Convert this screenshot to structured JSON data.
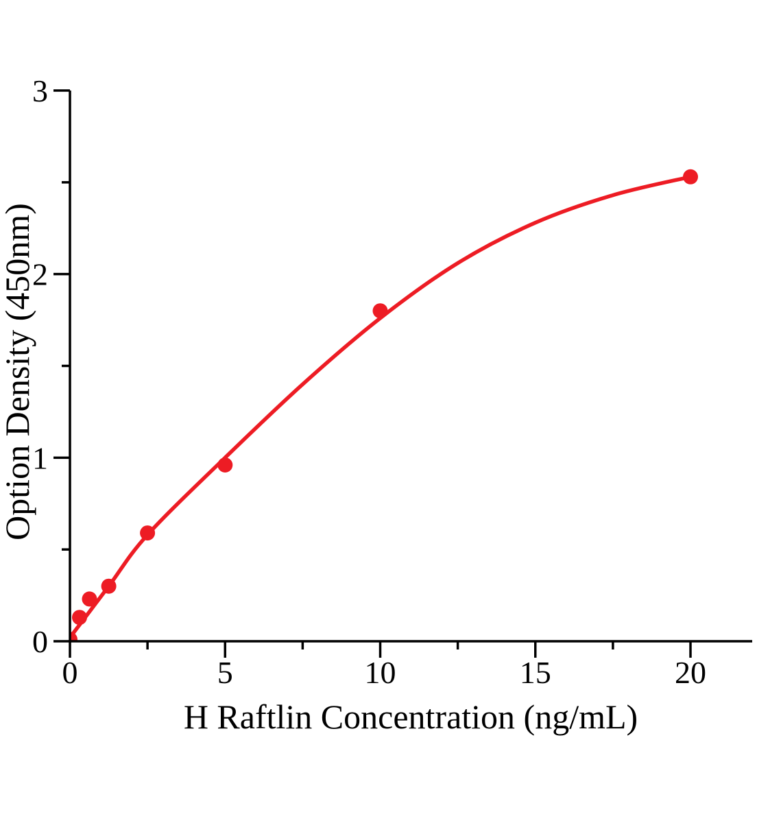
{
  "page": {
    "background": "#ffffff",
    "description": "ELISA standard curve plot"
  },
  "chart_data": {
    "type": "scatter",
    "title": "",
    "xlabel": "H Raftlin Concentration（ng/mL）",
    "ylabel": "Option Density（450nm）",
    "x": [
      0,
      0.31,
      0.63,
      1.25,
      2.5,
      5,
      10,
      20
    ],
    "y": [
      0.01,
      0.13,
      0.23,
      0.3,
      0.59,
      0.96,
      1.8,
      2.53
    ],
    "xlim": [
      0,
      22
    ],
    "ylim": [
      0,
      3
    ],
    "x_ticks": {
      "values": [
        0,
        5,
        10,
        15,
        20
      ],
      "labels": [
        "0",
        "5",
        "10",
        "15",
        "20"
      ],
      "minor": [
        2.5,
        7.5,
        12.5,
        17.5
      ]
    },
    "y_ticks": {
      "values": [
        0,
        1,
        2,
        3
      ],
      "labels": [
        "0",
        "1",
        "2",
        "3"
      ],
      "minor": [
        0.5,
        1.5,
        2.5
      ]
    },
    "grid": false,
    "legend": false,
    "point_color": "#ed1c24",
    "line_color": "#ed1c24",
    "axis_color": "#000000",
    "fit_curve": {
      "type": "smooth-saturating-fit",
      "x": [
        0,
        1.25,
        2.5,
        5,
        7.5,
        10,
        12.5,
        15,
        17.5,
        20
      ],
      "y": [
        0.02,
        0.3,
        0.58,
        1.0,
        1.4,
        1.76,
        2.06,
        2.28,
        2.43,
        2.53
      ]
    }
  }
}
